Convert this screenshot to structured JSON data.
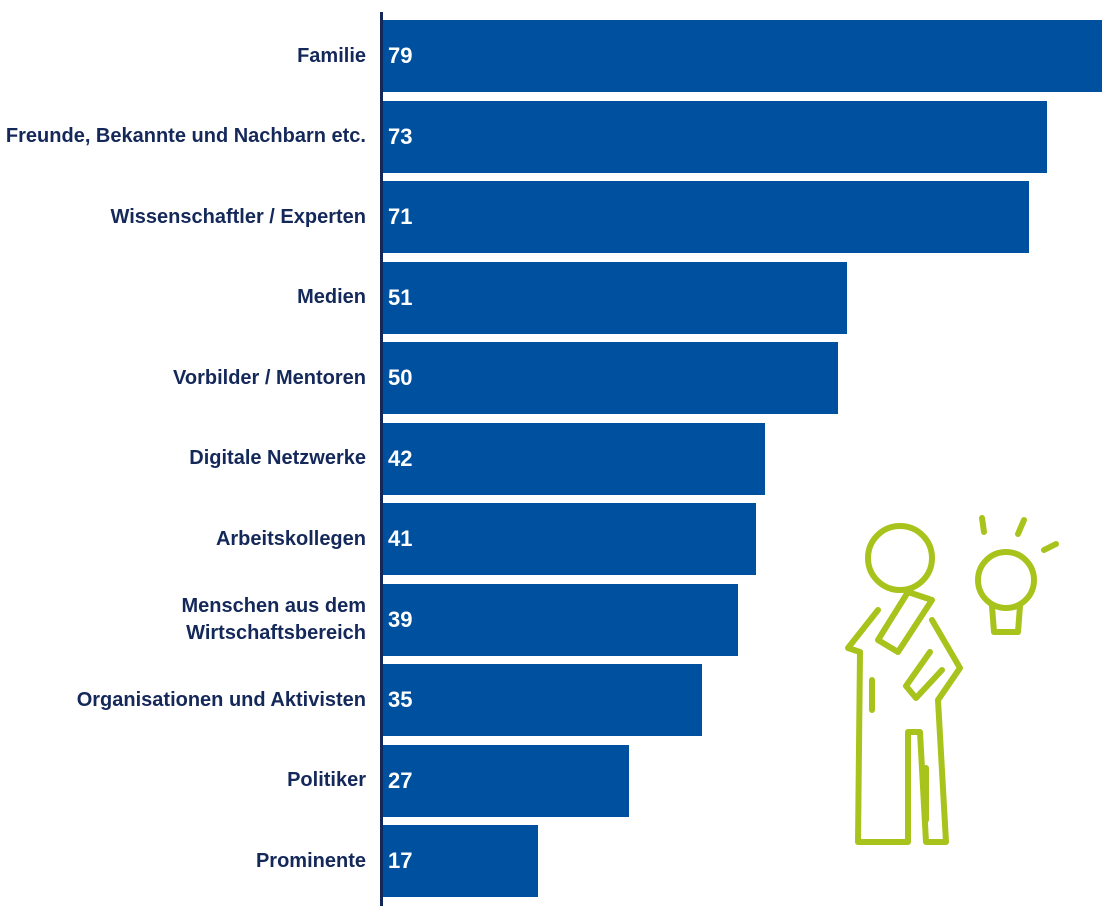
{
  "chart_data": {
    "type": "bar",
    "orientation": "horizontal",
    "categories": [
      "Familie",
      "Freunde, Bekannte und Nachbarn etc.",
      "Wissenschaftler / Experten",
      "Medien",
      "Vorbilder / Mentoren",
      "Digitale Netzwerke",
      "Arbeitskollegen",
      "Menschen aus dem Wirtschaftsbereich",
      "Organisationen und Aktivisten",
      "Politiker",
      "Prominente"
    ],
    "values": [
      79,
      73,
      71,
      51,
      50,
      42,
      41,
      39,
      35,
      27,
      17
    ],
    "color": "#0050a0",
    "xlim": [
      0,
      79
    ]
  }
}
